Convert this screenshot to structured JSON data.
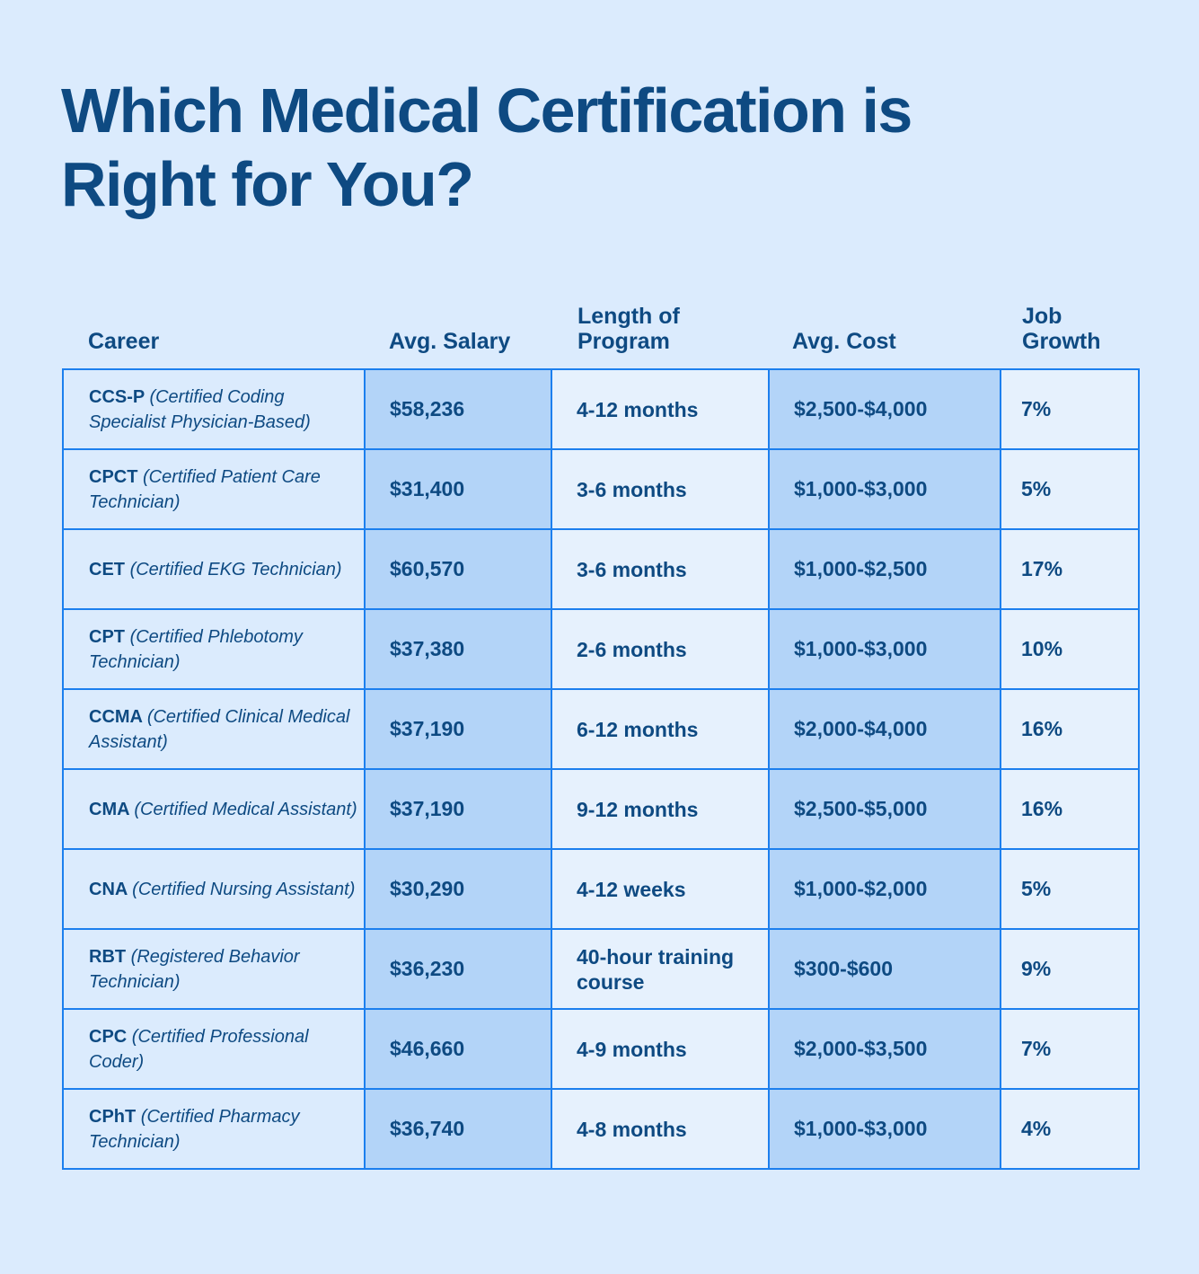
{
  "title": "Which Medical Certification is Right for You?",
  "headers": [
    "Career",
    "Avg. Salary",
    "Length of Program",
    "Avg. Cost",
    "Job Growth"
  ],
  "rows": [
    {
      "abbr": "CCS-P",
      "name": "(Certified Coding Specialist Physician-Based)",
      "salary": "$58,236",
      "length": "4-12 months",
      "cost": "$2,500-$4,000",
      "growth": "7%"
    },
    {
      "abbr": "CPCT",
      "name": "(Certified Patient Care Technician)",
      "salary": "$31,400",
      "length": "3-6 months",
      "cost": "$1,000-$3,000",
      "growth": "5%"
    },
    {
      "abbr": "CET",
      "name": "(Certified EKG Technician)",
      "salary": "$60,570",
      "length": "3-6 months",
      "cost": "$1,000-$2,500",
      "growth": "17%"
    },
    {
      "abbr": "CPT",
      "name": "(Certified Phlebotomy Technician)",
      "salary": "$37,380",
      "length": "2-6 months",
      "cost": "$1,000-$3,000",
      "growth": "10%"
    },
    {
      "abbr": "CCMA",
      "name": "(Certified Clinical Medical Assistant)",
      "salary": "$37,190",
      "length": "6-12 months",
      "cost": "$2,000-$4,000",
      "growth": "16%"
    },
    {
      "abbr": "CMA",
      "name": "(Certified Medical Assistant)",
      "salary": "$37,190",
      "length": "9-12 months",
      "cost": "$2,500-$5,000",
      "growth": "16%"
    },
    {
      "abbr": "CNA",
      "name": "(Certified Nursing Assistant)",
      "salary": "$30,290",
      "length": "4-12 weeks",
      "cost": "$1,000-$2,000",
      "growth": "5%"
    },
    {
      "abbr": "RBT",
      "name": "(Registered Behavior Technician)",
      "salary": "$36,230",
      "length": "40-hour training course",
      "cost": "$300-$600",
      "growth": "9%"
    },
    {
      "abbr": "CPC",
      "name": "(Certified Professional Coder)",
      "salary": "$46,660",
      "length": "4-9 months",
      "cost": "$2,000-$3,500",
      "growth": "7%"
    },
    {
      "abbr": "CPhT",
      "name": "(Certified Pharmacy Technician)",
      "salary": "$36,740",
      "length": "4-8 months",
      "cost": "$1,000-$3,000",
      "growth": "4%"
    }
  ],
  "colors": {
    "background": "#dbebfd",
    "text": "#0e4a82",
    "border": "#1c7fee",
    "shaded": "#b3d4f8",
    "light": "#e6f1fd"
  }
}
